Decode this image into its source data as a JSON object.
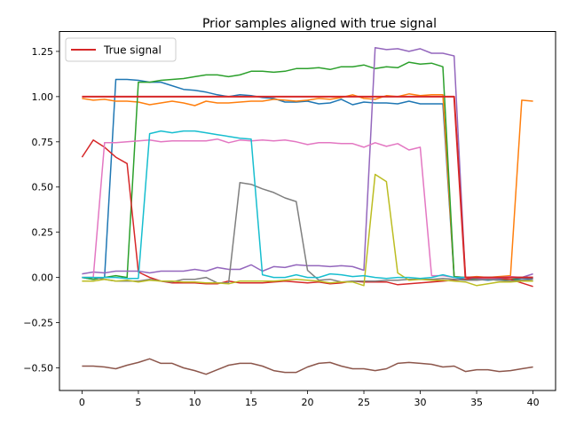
{
  "chart_data": {
    "type": "line",
    "title": "Prior samples aligned with true signal",
    "xlabel": "",
    "ylabel": "",
    "xlim": [
      -2,
      42
    ],
    "ylim": [
      -0.625,
      1.36
    ],
    "xticks": [
      0,
      5,
      10,
      15,
      20,
      25,
      30,
      35,
      40
    ],
    "yticks": [
      -0.5,
      -0.25,
      0.0,
      0.25,
      0.5,
      0.75,
      1.0,
      1.25
    ],
    "grid": false,
    "legend": {
      "position": "top-left",
      "entries": [
        "True signal"
      ]
    },
    "x": [
      0,
      1,
      2,
      3,
      4,
      5,
      6,
      7,
      8,
      9,
      10,
      11,
      12,
      13,
      14,
      15,
      16,
      17,
      18,
      19,
      20,
      21,
      22,
      23,
      24,
      25,
      26,
      27,
      28,
      29,
      30,
      31,
      32,
      33,
      34,
      35,
      36,
      37,
      38,
      39,
      40
    ],
    "series": [
      {
        "color": "#1f77b4",
        "values": [
          0.0,
          -0.01,
          0.0,
          1.095,
          1.095,
          1.09,
          1.08,
          1.08,
          1.06,
          1.04,
          1.035,
          1.025,
          1.01,
          1.0,
          1.01,
          1.005,
          0.995,
          0.99,
          0.97,
          0.97,
          0.975,
          0.96,
          0.965,
          0.985,
          0.955,
          0.97,
          0.965,
          0.965,
          0.96,
          0.975,
          0.96,
          0.96,
          0.96,
          0.0,
          -0.01,
          -0.01,
          -0.015,
          -0.01,
          -0.01,
          -0.005,
          -0.005
        ]
      },
      {
        "color": "#ff7f0e",
        "values": [
          0.99,
          0.98,
          0.985,
          0.975,
          0.975,
          0.97,
          0.955,
          0.965,
          0.975,
          0.965,
          0.95,
          0.975,
          0.965,
          0.965,
          0.97,
          0.975,
          0.975,
          0.985,
          0.98,
          0.975,
          0.98,
          0.99,
          0.985,
          0.995,
          1.01,
          0.99,
          0.985,
          1.005,
          1.0,
          1.015,
          1.005,
          1.01,
          1.01,
          0.005,
          0.0,
          0.005,
          0.0,
          0.005,
          0.01,
          0.98,
          0.975
        ]
      },
      {
        "color": "#2ca02c",
        "values": [
          0.0,
          -0.01,
          0.0,
          0.01,
          0.0,
          1.08,
          1.08,
          1.09,
          1.095,
          1.1,
          1.11,
          1.12,
          1.12,
          1.11,
          1.12,
          1.14,
          1.14,
          1.135,
          1.14,
          1.155,
          1.155,
          1.16,
          1.15,
          1.165,
          1.165,
          1.175,
          1.155,
          1.165,
          1.16,
          1.19,
          1.18,
          1.185,
          1.165,
          0.005,
          0.0,
          -0.01,
          -0.01,
          -0.015,
          -0.01,
          -0.015,
          -0.02
        ]
      },
      {
        "color": "#d62728",
        "values": [
          0.665,
          0.76,
          0.72,
          0.665,
          0.63,
          0.03,
          0.0,
          -0.02,
          -0.03,
          -0.03,
          -0.03,
          -0.035,
          -0.035,
          -0.02,
          -0.03,
          -0.03,
          -0.03,
          -0.025,
          -0.02,
          -0.025,
          -0.03,
          -0.025,
          -0.035,
          -0.03,
          -0.02,
          -0.025,
          -0.025,
          -0.025,
          -0.04,
          -0.035,
          -0.03,
          -0.025,
          -0.02,
          -0.015,
          -0.01,
          0.0,
          0.0,
          -0.005,
          -0.01,
          -0.03,
          -0.05
        ]
      },
      {
        "color": "#9467bd",
        "values": [
          0.02,
          0.03,
          0.025,
          0.035,
          0.035,
          0.035,
          0.025,
          0.035,
          0.035,
          0.035,
          0.045,
          0.035,
          0.055,
          0.045,
          0.045,
          0.07,
          0.035,
          0.06,
          0.055,
          0.07,
          0.065,
          0.065,
          0.06,
          0.065,
          0.06,
          0.04,
          1.27,
          1.26,
          1.265,
          1.25,
          1.265,
          1.24,
          1.24,
          1.225,
          0.0,
          -0.005,
          -0.01,
          -0.005,
          0.0,
          0.0,
          0.02
        ]
      },
      {
        "color": "#8c564b",
        "values": [
          -0.49,
          -0.49,
          -0.495,
          -0.505,
          -0.485,
          -0.47,
          -0.45,
          -0.475,
          -0.475,
          -0.5,
          -0.515,
          -0.535,
          -0.51,
          -0.485,
          -0.475,
          -0.475,
          -0.49,
          -0.515,
          -0.525,
          -0.525,
          -0.495,
          -0.475,
          -0.47,
          -0.49,
          -0.505,
          -0.505,
          -0.515,
          -0.505,
          -0.475,
          -0.47,
          -0.475,
          -0.48,
          -0.495,
          -0.49,
          -0.52,
          -0.51,
          -0.51,
          -0.52,
          -0.515,
          -0.505,
          -0.495
        ]
      },
      {
        "color": "#e377c2",
        "values": [
          0.0,
          0.0,
          0.745,
          0.745,
          0.75,
          0.755,
          0.76,
          0.75,
          0.755,
          0.755,
          0.755,
          0.755,
          0.765,
          0.745,
          0.76,
          0.755,
          0.76,
          0.755,
          0.76,
          0.75,
          0.735,
          0.745,
          0.745,
          0.74,
          0.74,
          0.72,
          0.745,
          0.725,
          0.74,
          0.705,
          0.72,
          0.01,
          0.01,
          0.0,
          0.0,
          0.0,
          -0.005,
          0.0,
          0.005,
          0.0,
          0.0
        ]
      },
      {
        "color": "#7f7f7f",
        "values": [
          0.0,
          0.0,
          -0.01,
          -0.02,
          -0.02,
          -0.02,
          -0.01,
          -0.02,
          -0.025,
          -0.01,
          -0.01,
          0.0,
          -0.03,
          -0.03,
          0.525,
          0.515,
          0.49,
          0.47,
          0.44,
          0.42,
          0.04,
          -0.015,
          -0.01,
          -0.025,
          -0.02,
          -0.02,
          -0.02,
          -0.015,
          -0.015,
          -0.01,
          -0.01,
          -0.01,
          -0.005,
          -0.01,
          -0.015,
          -0.015,
          -0.01,
          -0.015,
          -0.02,
          -0.015,
          -0.01
        ]
      },
      {
        "color": "#bcbd22",
        "values": [
          -0.02,
          -0.02,
          -0.01,
          -0.02,
          -0.015,
          -0.025,
          -0.015,
          -0.02,
          -0.02,
          -0.025,
          -0.025,
          -0.03,
          -0.03,
          -0.035,
          -0.02,
          -0.02,
          -0.02,
          -0.02,
          -0.015,
          -0.01,
          -0.015,
          -0.02,
          -0.03,
          -0.025,
          -0.025,
          -0.045,
          0.57,
          0.53,
          0.025,
          -0.015,
          -0.01,
          -0.015,
          -0.015,
          -0.02,
          -0.025,
          -0.045,
          -0.035,
          -0.025,
          -0.025,
          -0.02,
          -0.02
        ]
      },
      {
        "color": "#17becf",
        "values": [
          0.0,
          0.0,
          0.0,
          0.0,
          -0.005,
          -0.005,
          0.795,
          0.81,
          0.8,
          0.81,
          0.81,
          0.8,
          0.79,
          0.78,
          0.77,
          0.765,
          0.015,
          0.0,
          0.0,
          0.015,
          0.0,
          0.0,
          0.02,
          0.015,
          0.005,
          0.01,
          0.0,
          -0.005,
          0.0,
          0.0,
          -0.005,
          0.0,
          0.015,
          0.0,
          0.0,
          0.0,
          0.0,
          0.0,
          0.0,
          0.0,
          0.0
        ]
      },
      {
        "name": "True signal",
        "color": "#d62728",
        "width": 2,
        "values": [
          1,
          1,
          1,
          1,
          1,
          1,
          1,
          1,
          1,
          1,
          1,
          1,
          1,
          1,
          1,
          1,
          1,
          1,
          1,
          1,
          1,
          1,
          1,
          1,
          1,
          1,
          1,
          1,
          1,
          1,
          1,
          1,
          1,
          1,
          0,
          0,
          0,
          0,
          0,
          0,
          0
        ]
      }
    ]
  }
}
